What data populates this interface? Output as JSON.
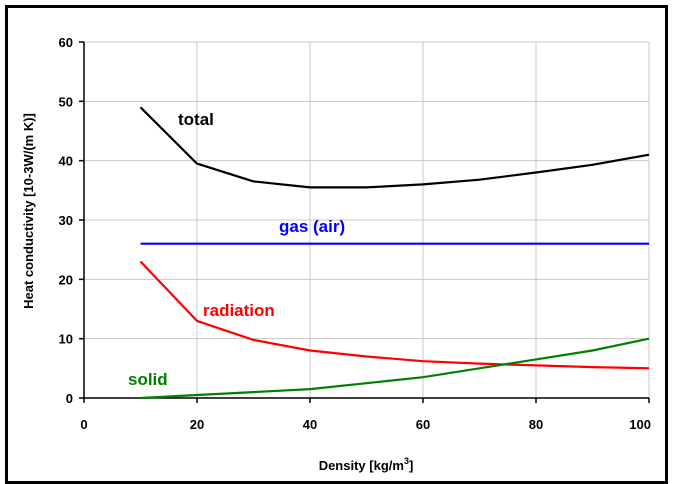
{
  "chart_data": {
    "type": "line",
    "title": "",
    "xlabel": "Density [kg/m",
    "xlabel_superscript": "3",
    "xlabel_suffix": "]",
    "ylabel": "Heat conductivity [10-3W/(m K)]",
    "xlim": [
      0,
      100
    ],
    "ylim": [
      0,
      60
    ],
    "x_ticks": [
      "0",
      "20",
      "40",
      "60",
      "80",
      "100"
    ],
    "y_ticks": [
      "0",
      "10",
      "20",
      "30",
      "40",
      "50",
      "60"
    ],
    "grid": true,
    "series": [
      {
        "name": "total",
        "color": "#000000",
        "x": [
          10,
          20,
          30,
          40,
          50,
          60,
          70,
          80,
          90,
          100
        ],
        "y": [
          49,
          39.5,
          36.5,
          35.5,
          35.5,
          36,
          36.8,
          38,
          39.3,
          41
        ]
      },
      {
        "name": "gas (air)",
        "color": "#0000ff",
        "x": [
          10,
          100
        ],
        "y": [
          26,
          26
        ]
      },
      {
        "name": "radiation",
        "color": "#ff0000",
        "x": [
          10,
          20,
          30,
          40,
          50,
          60,
          70,
          80,
          90,
          100
        ],
        "y": [
          23,
          13,
          9.8,
          8,
          7,
          6.2,
          5.8,
          5.5,
          5.2,
          5
        ]
      },
      {
        "name": "solid",
        "color": "#008000",
        "x": [
          10,
          20,
          30,
          40,
          50,
          60,
          70,
          80,
          90,
          100
        ],
        "y": [
          0,
          0.5,
          1,
          1.5,
          2.5,
          3.5,
          5,
          6.5,
          8,
          10
        ]
      }
    ]
  }
}
